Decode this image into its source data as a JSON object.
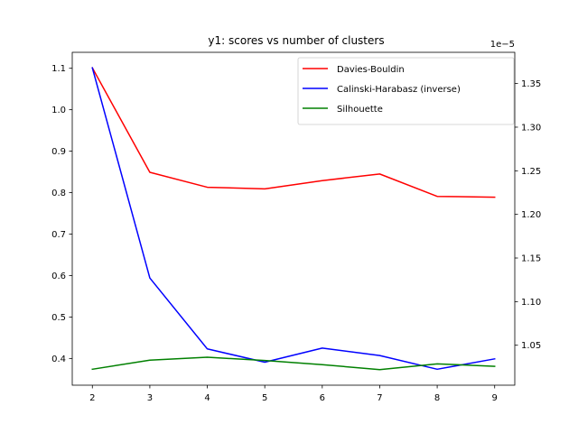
{
  "chart_data": {
    "type": "line",
    "title": "y1: scores vs number of clusters",
    "x": [
      2,
      3,
      4,
      5,
      6,
      7,
      8,
      9
    ],
    "xlim": [
      1.65,
      9.35
    ],
    "xticks": [
      2,
      3,
      4,
      5,
      6,
      7,
      8,
      9
    ],
    "left_axis": {
      "ylim": [
        0.3355,
        1.1385
      ],
      "ticks": [
        0.4,
        0.5,
        0.6,
        0.7,
        0.8,
        0.9,
        1.0,
        1.1
      ],
      "tick_labels": [
        "0.4",
        "0.5",
        "0.6",
        "0.7",
        "0.8",
        "0.9",
        "1.0",
        "1.1"
      ]
    },
    "right_axis": {
      "offset_label": "1e−5",
      "ylim": [
        1.0042,
        1.3858
      ],
      "ticks": [
        1.05,
        1.1,
        1.15,
        1.2,
        1.25,
        1.3,
        1.35
      ],
      "tick_labels": [
        "1.05",
        "1.10",
        "1.15",
        "1.20",
        "1.25",
        "1.30",
        "1.35"
      ]
    },
    "legend_position": "top-right",
    "series": [
      {
        "name": "Davies-Bouldin",
        "color": "#ff0000",
        "axis": "left",
        "values": [
          1.101,
          0.849,
          0.813,
          0.809,
          0.829,
          0.845,
          0.791,
          0.789
        ]
      },
      {
        "name": "Calinski-Harabasz (inverse)",
        "color": "#0000ff",
        "axis": "left",
        "values": [
          1.101,
          0.594,
          0.423,
          0.391,
          0.425,
          0.407,
          0.374,
          0.399
        ]
      },
      {
        "name": "Silhouette",
        "color": "#008000",
        "axis": "left",
        "values": [
          0.374,
          0.396,
          0.403,
          0.395,
          0.385,
          0.373,
          0.387,
          0.381
        ]
      }
    ]
  }
}
